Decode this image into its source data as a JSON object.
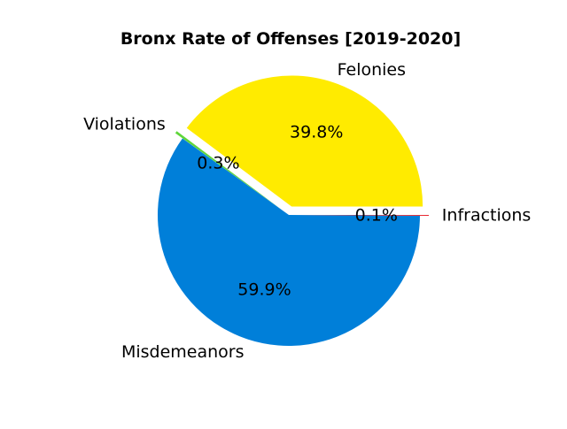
{
  "chart_data": {
    "type": "pie",
    "title": "Bronx Rate of Offenses [2019-2020]",
    "slices": [
      {
        "label": "Felonies",
        "value": 39.8,
        "pct_label": "39.8%",
        "color": "#ffeb00",
        "explode": true
      },
      {
        "label": "Violations",
        "value": 0.3,
        "pct_label": "0.3%",
        "color": "#5fd63a",
        "explode": true
      },
      {
        "label": "Misdemeanors",
        "value": 59.9,
        "pct_label": "59.9%",
        "color": "#007fd9",
        "explode": false
      },
      {
        "label": "Infractions",
        "value": 0.1,
        "pct_label": "0.1%",
        "color": "#e8242d",
        "explode": true
      }
    ],
    "start_angle_deg": 0,
    "direction": "counterclockwise"
  }
}
